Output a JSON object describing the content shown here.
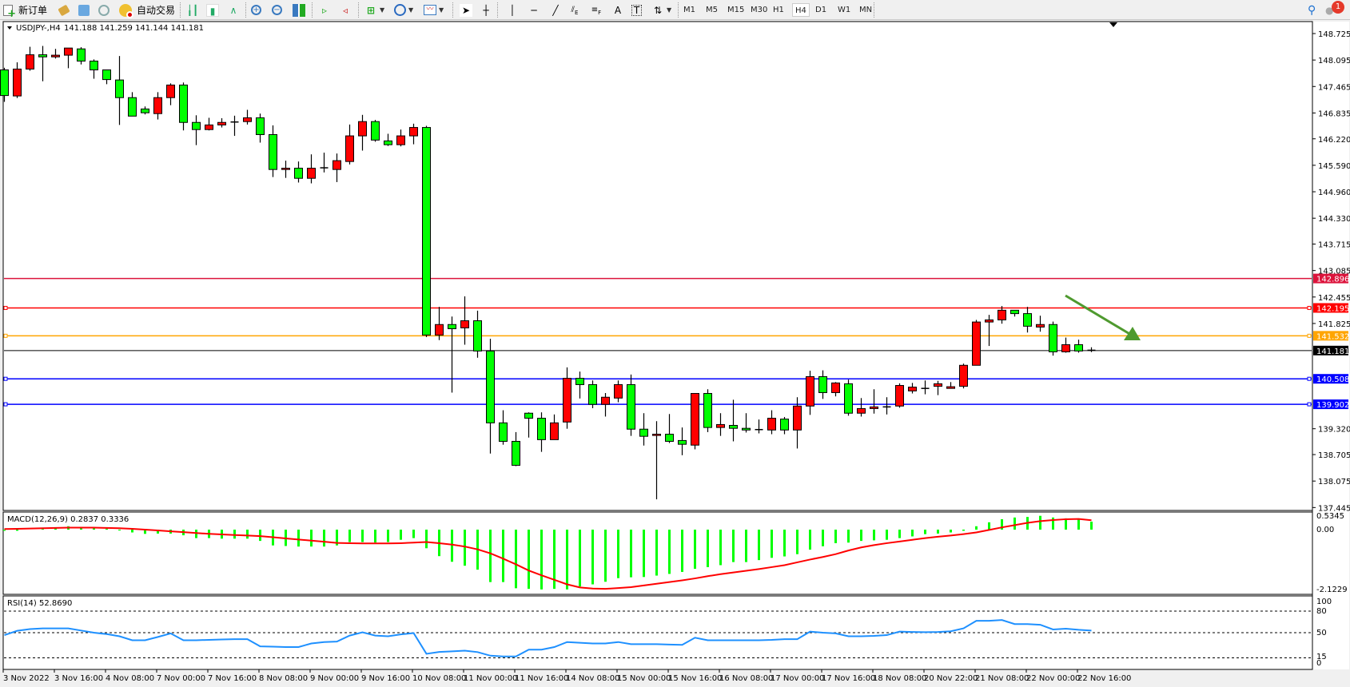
{
  "toolbar": {
    "new_order_label": "新订单",
    "autotrade_label": "自动交易",
    "timeframes": [
      "M1",
      "M5",
      "M15",
      "M30",
      "H1",
      "H4",
      "D1",
      "W1",
      "MN"
    ],
    "active_timeframe": "H4",
    "text_tool_label": "A",
    "label_tool_label": "T",
    "notification_count": "1"
  },
  "chart": {
    "symbol_header": "USDJPY-,H4",
    "ohlc_header": "141.188 141.259 141.144 141.181",
    "bull_color": "#ff0000",
    "bear_color": "#00ff00",
    "price_ticks": [
      "148.725",
      "148.095",
      "147.465",
      "146.835",
      "146.220",
      "145.590",
      "144.960",
      "144.330",
      "143.715",
      "143.085",
      "142.455",
      "141.825",
      "139.320",
      "138.705",
      "138.075",
      "137.445"
    ],
    "levels": [
      {
        "price": "142.896",
        "color": "#dc143c",
        "marker": false
      },
      {
        "price": "142.195",
        "color": "#ff0000",
        "marker": true
      },
      {
        "price": "141.532",
        "color": "#ffa500",
        "marker": true
      },
      {
        "price": "141.181",
        "color": "#000000",
        "marker": false
      },
      {
        "price": "140.508",
        "color": "#0000ff",
        "marker": true
      },
      {
        "price": "139.902",
        "color": "#0000ff",
        "marker": true
      }
    ],
    "arrow_color": "#4f9a2f",
    "ohlc": [
      [
        147.86,
        147.91,
        147.1,
        147.25
      ],
      [
        147.24,
        148.04,
        147.19,
        147.88
      ],
      [
        147.88,
        148.41,
        147.84,
        148.22
      ],
      [
        148.22,
        148.43,
        147.59,
        148.17
      ],
      [
        148.17,
        148.36,
        148.13,
        148.21
      ],
      [
        148.21,
        148.38,
        147.9,
        148.38
      ],
      [
        148.36,
        148.4,
        147.99,
        148.07
      ],
      [
        148.07,
        148.11,
        147.65,
        147.86
      ],
      [
        147.86,
        147.86,
        147.52,
        147.63
      ],
      [
        147.62,
        148.19,
        146.55,
        147.2
      ],
      [
        147.2,
        147.33,
        146.76,
        146.76
      ],
      [
        146.93,
        146.99,
        146.8,
        146.84
      ],
      [
        146.82,
        147.33,
        146.68,
        147.2
      ],
      [
        147.2,
        147.54,
        147.02,
        147.5
      ],
      [
        147.5,
        147.56,
        146.42,
        146.61
      ],
      [
        146.61,
        146.78,
        146.07,
        146.44
      ],
      [
        146.44,
        146.72,
        146.42,
        146.55
      ],
      [
        146.55,
        146.71,
        146.49,
        146.61
      ],
      [
        146.62,
        146.77,
        146.29,
        146.62
      ],
      [
        146.63,
        146.91,
        146.56,
        146.72
      ],
      [
        146.72,
        146.82,
        146.13,
        146.32
      ],
      [
        146.32,
        146.54,
        145.31,
        145.49
      ],
      [
        145.49,
        145.7,
        145.29,
        145.52
      ],
      [
        145.52,
        145.68,
        145.18,
        145.28
      ],
      [
        145.28,
        145.85,
        145.16,
        145.52
      ],
      [
        145.52,
        145.89,
        145.42,
        145.53
      ],
      [
        145.49,
        145.87,
        145.19,
        145.7
      ],
      [
        145.68,
        146.56,
        145.61,
        146.29
      ],
      [
        146.29,
        146.79,
        145.94,
        146.63
      ],
      [
        146.63,
        146.67,
        146.15,
        146.19
      ],
      [
        146.17,
        146.34,
        146.05,
        146.08
      ],
      [
        146.08,
        146.44,
        146.04,
        146.29
      ],
      [
        146.29,
        146.58,
        146.09,
        146.49
      ],
      [
        146.49,
        146.53,
        141.5,
        141.55
      ],
      [
        141.55,
        142.22,
        141.43,
        141.8
      ],
      [
        141.8,
        141.99,
        140.18,
        141.7
      ],
      [
        141.72,
        142.47,
        141.32,
        141.89
      ],
      [
        141.89,
        142.13,
        141.01,
        141.17
      ],
      [
        141.17,
        141.46,
        138.73,
        139.46
      ],
      [
        139.46,
        139.76,
        138.94,
        139.02
      ],
      [
        139.02,
        139.24,
        138.43,
        138.45
      ],
      [
        139.69,
        139.71,
        139.11,
        139.57
      ],
      [
        139.57,
        139.71,
        138.77,
        139.06
      ],
      [
        139.06,
        139.66,
        139.06,
        139.46
      ],
      [
        139.48,
        140.78,
        139.32,
        140.52
      ],
      [
        140.52,
        140.68,
        140.04,
        140.37
      ],
      [
        140.37,
        140.47,
        139.81,
        139.9
      ],
      [
        139.9,
        140.17,
        139.61,
        140.07
      ],
      [
        140.05,
        140.47,
        139.95,
        140.37
      ],
      [
        140.37,
        140.61,
        139.15,
        139.31
      ],
      [
        139.31,
        139.69,
        138.92,
        139.14
      ],
      [
        139.16,
        139.5,
        137.64,
        139.19
      ],
      [
        139.19,
        139.67,
        138.98,
        139.02
      ],
      [
        139.04,
        139.35,
        138.69,
        138.95
      ],
      [
        138.93,
        140.16,
        138.83,
        140.16
      ],
      [
        140.16,
        140.26,
        139.24,
        139.35
      ],
      [
        139.35,
        139.69,
        139.15,
        139.42
      ],
      [
        139.4,
        140.01,
        139.02,
        139.33
      ],
      [
        139.33,
        139.69,
        139.23,
        139.29
      ],
      [
        139.3,
        139.54,
        139.21,
        139.3
      ],
      [
        139.29,
        139.76,
        139.19,
        139.57
      ],
      [
        139.55,
        139.6,
        139.19,
        139.29
      ],
      [
        139.29,
        140.07,
        138.85,
        139.86
      ],
      [
        139.86,
        140.7,
        139.65,
        140.56
      ],
      [
        140.56,
        140.71,
        140.03,
        140.18
      ],
      [
        140.18,
        140.43,
        140.09,
        140.41
      ],
      [
        140.39,
        140.49,
        139.63,
        139.69
      ],
      [
        139.69,
        140.05,
        139.61,
        139.8
      ],
      [
        139.8,
        140.26,
        139.68,
        139.84
      ],
      [
        139.84,
        140.07,
        139.66,
        139.84
      ],
      [
        139.86,
        140.4,
        139.82,
        140.35
      ],
      [
        140.22,
        140.41,
        140.16,
        140.31
      ],
      [
        140.28,
        140.47,
        140.14,
        140.28
      ],
      [
        140.33,
        140.46,
        140.12,
        140.39
      ],
      [
        140.28,
        140.43,
        140.28,
        140.32
      ],
      [
        140.33,
        140.87,
        140.28,
        140.83
      ],
      [
        140.83,
        141.91,
        140.83,
        141.86
      ],
      [
        141.86,
        142.03,
        141.29,
        141.91
      ],
      [
        141.91,
        142.24,
        141.82,
        142.14
      ],
      [
        142.14,
        142.14,
        141.99,
        142.06
      ],
      [
        142.06,
        142.22,
        141.61,
        141.76
      ],
      [
        141.74,
        142.01,
        141.63,
        141.8
      ],
      [
        141.8,
        141.87,
        141.06,
        141.15
      ],
      [
        141.15,
        141.49,
        141.13,
        141.32
      ],
      [
        141.32,
        141.44,
        141.13,
        141.17
      ],
      [
        141.188,
        141.259,
        141.144,
        141.181
      ]
    ]
  },
  "macd": {
    "header": "MACD(12,26,9) 0.2837 0.3336",
    "ticks": [
      "0.5345",
      "0.00",
      "-2.1229"
    ],
    "hist_color": "#00ff00",
    "signal_color": "#ff0000",
    "histogram": [
      -0.04,
      -0.04,
      0.0,
      0.04,
      0.06,
      0.12,
      0.1,
      0.07,
      0.03,
      -0.03,
      -0.1,
      -0.15,
      -0.14,
      -0.14,
      -0.2,
      -0.3,
      -0.3,
      -0.32,
      -0.32,
      -0.32,
      -0.4,
      -0.56,
      -0.58,
      -0.6,
      -0.6,
      -0.6,
      -0.56,
      -0.44,
      -0.44,
      -0.46,
      -0.44,
      -0.36,
      -0.3,
      -0.66,
      -0.94,
      -1.14,
      -1.28,
      -1.42,
      -1.86,
      -1.86,
      -2.08,
      -2.1,
      -2.12,
      -2.1,
      -2.12,
      -2.02,
      -1.94,
      -1.85,
      -1.72,
      -1.69,
      -1.68,
      -1.63,
      -1.57,
      -1.5,
      -1.39,
      -1.33,
      -1.26,
      -1.15,
      -1.15,
      -1.08,
      -1.0,
      -0.95,
      -0.87,
      -0.71,
      -0.59,
      -0.48,
      -0.46,
      -0.4,
      -0.38,
      -0.36,
      -0.3,
      -0.24,
      -0.16,
      -0.14,
      -0.1,
      -0.04,
      0.12,
      0.26,
      0.37,
      0.43,
      0.45,
      0.49,
      0.43,
      0.4,
      0.38,
      0.2837
    ],
    "signal": [
      0.02,
      0.03,
      0.04,
      0.05,
      0.06,
      0.07,
      0.07,
      0.07,
      0.06,
      0.05,
      0.03,
      0.0,
      -0.03,
      -0.06,
      -0.09,
      -0.12,
      -0.15,
      -0.17,
      -0.19,
      -0.21,
      -0.23,
      -0.27,
      -0.31,
      -0.35,
      -0.39,
      -0.43,
      -0.47,
      -0.48,
      -0.49,
      -0.49,
      -0.49,
      -0.48,
      -0.46,
      -0.44,
      -0.48,
      -0.53,
      -0.6,
      -0.7,
      -0.84,
      -1.03,
      -1.23,
      -1.45,
      -1.62,
      -1.78,
      -1.94,
      -2.05,
      -2.09,
      -2.1,
      -2.07,
      -2.04,
      -1.98,
      -1.92,
      -1.86,
      -1.8,
      -1.73,
      -1.65,
      -1.58,
      -1.52,
      -1.46,
      -1.4,
      -1.33,
      -1.26,
      -1.16,
      -1.06,
      -0.97,
      -0.87,
      -0.74,
      -0.63,
      -0.55,
      -0.48,
      -0.42,
      -0.36,
      -0.3,
      -0.25,
      -0.21,
      -0.16,
      -0.1,
      -0.01,
      0.08,
      0.16,
      0.24,
      0.3,
      0.34,
      0.37,
      0.38,
      0.3336
    ]
  },
  "rsi": {
    "header": "RSI(14) 52.8690",
    "ticks": [
      "100",
      "80",
      "50",
      "15",
      "0"
    ],
    "line_color": "#1e90ff",
    "values": [
      46.6,
      52.6,
      55,
      56,
      56,
      56,
      53,
      50,
      48,
      45,
      39.5,
      39.5,
      44,
      49,
      39.5,
      39.5,
      40,
      40.5,
      41,
      41,
      31,
      30.5,
      30,
      30,
      35,
      37,
      37.6,
      46,
      50.5,
      46,
      45,
      47.6,
      49.5,
      20.6,
      23.2,
      24,
      25,
      23,
      18,
      17,
      17,
      26.4,
      26.4,
      30,
      37,
      36,
      35,
      35,
      37,
      34,
      34,
      34,
      33.5,
      33,
      43,
      39.5,
      39.5,
      39.5,
      39.5,
      39.5,
      40,
      41,
      41,
      51.5,
      50,
      49,
      45,
      45,
      45.5,
      46.6,
      51.5,
      51,
      50.7,
      51,
      52,
      56,
      66.5,
      66.5,
      67.6,
      62,
      62,
      61,
      54.5,
      55.6,
      54,
      52.869
    ]
  },
  "time_axis": [
    "3 Nov 2022",
    "3 Nov 16:00",
    "4 Nov 08:00",
    "7 Nov 00:00",
    "7 Nov 16:00",
    "8 Nov 08:00",
    "9 Nov 00:00",
    "9 Nov 16:00",
    "10 Nov 08:00",
    "11 Nov 00:00",
    "11 Nov 16:00",
    "14 Nov 08:00",
    "15 Nov 00:00",
    "15 Nov 16:00",
    "16 Nov 08:00",
    "17 Nov 00:00",
    "17 Nov 16:00",
    "18 Nov 08:00",
    "20 Nov 22:00",
    "21 Nov 08:00",
    "22 Nov 00:00",
    "22 Nov 16:00"
  ]
}
